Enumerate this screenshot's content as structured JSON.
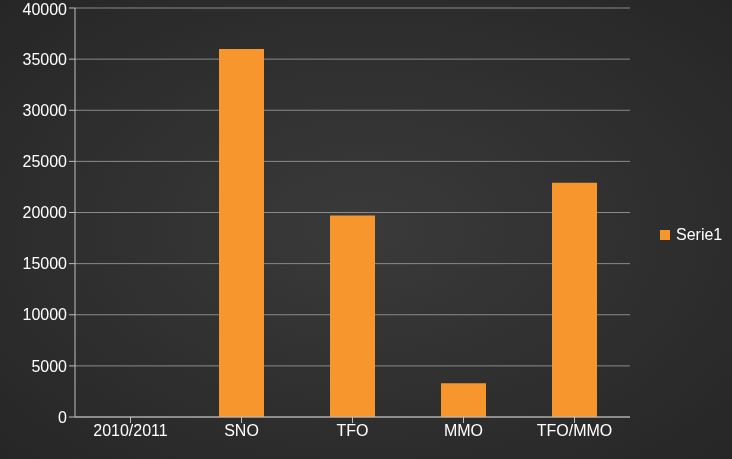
{
  "chart_data": {
    "type": "bar",
    "categories": [
      "2010/2011",
      "SNO",
      "TFO",
      "MMO",
      "TFO/MMO"
    ],
    "series": [
      {
        "name": "Serie1",
        "color": "#f7962d",
        "values": [
          null,
          36000,
          19700,
          3300,
          22900
        ]
      }
    ],
    "ylim": [
      0,
      40000
    ],
    "yticks": [
      0,
      5000,
      10000,
      15000,
      20000,
      25000,
      30000,
      35000,
      40000
    ],
    "grid": true,
    "legend": "right"
  }
}
